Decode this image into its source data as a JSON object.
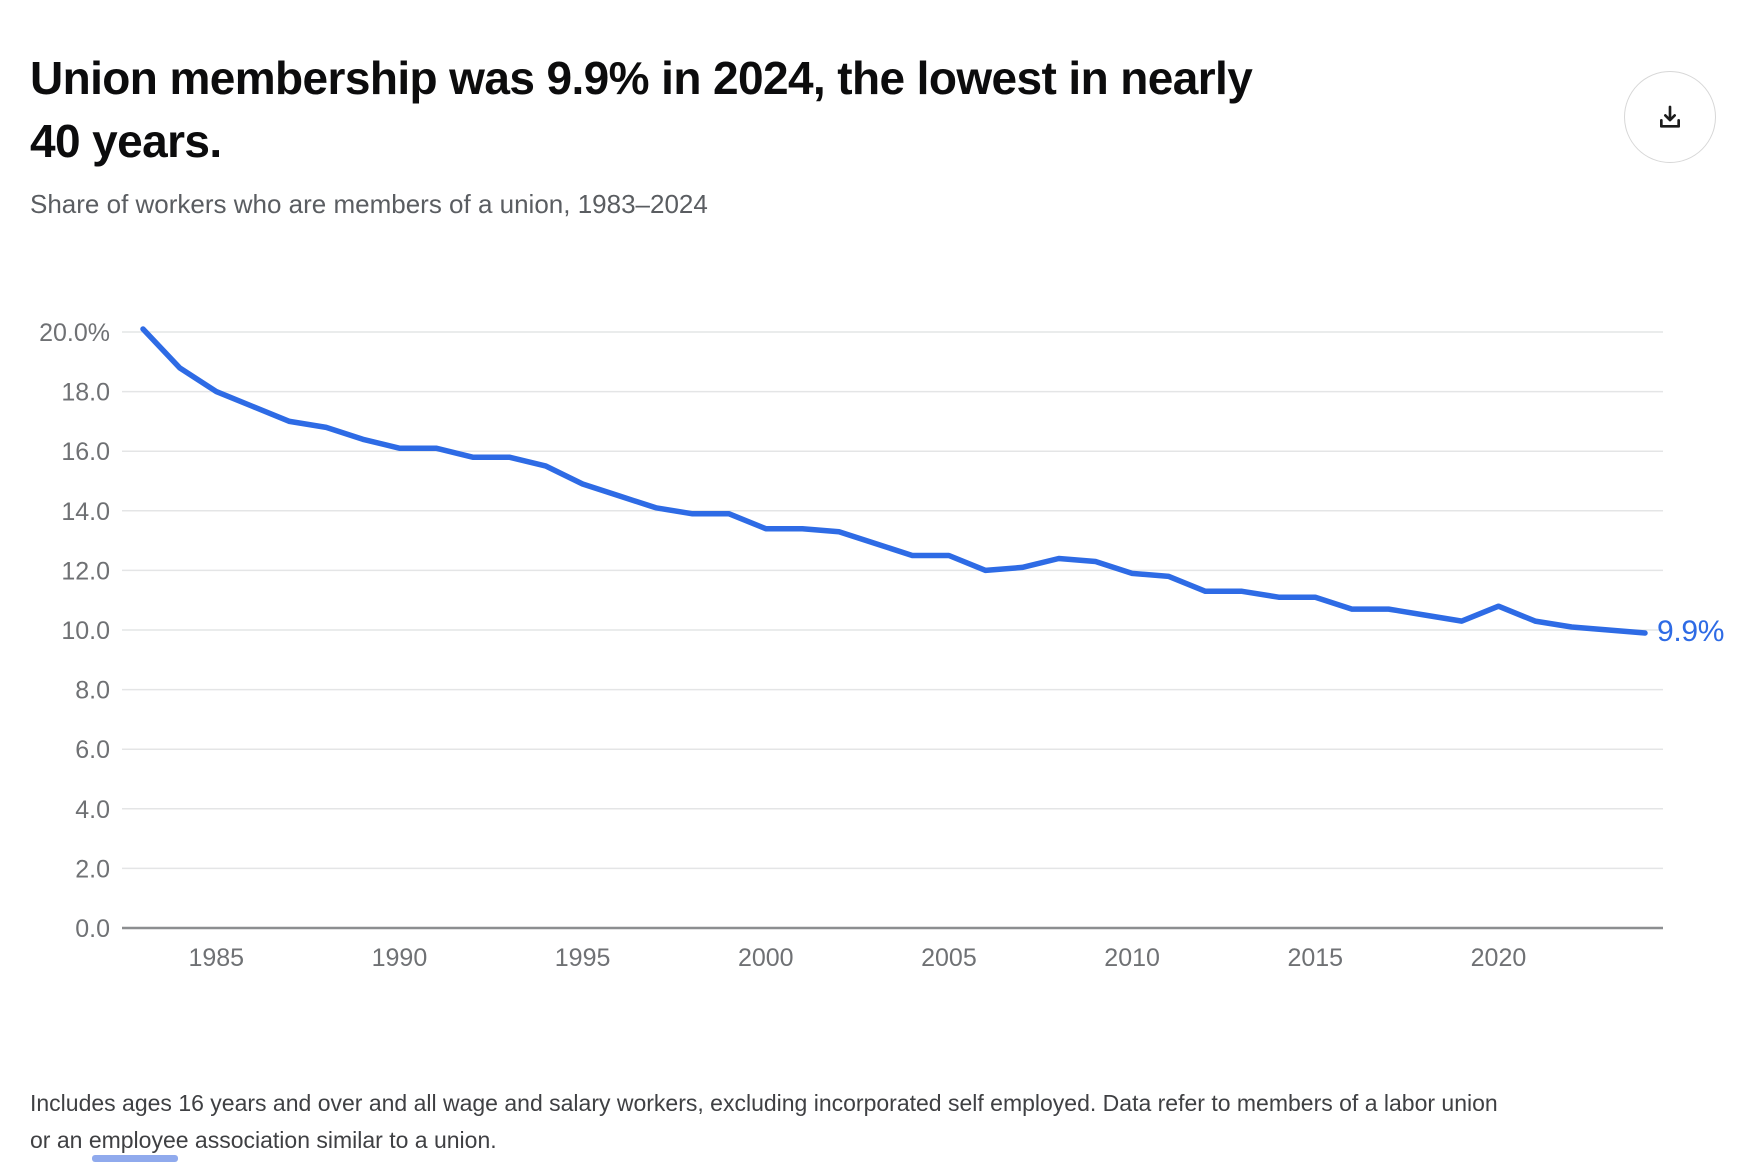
{
  "chart_data": {
    "type": "line",
    "title": "Union membership was 9.9% in 2024, the lowest in nearly\n40 years.",
    "subtitle": "Share of workers who are members of a union, 1983–2024",
    "footnote": "Includes ages 16 years and over and all wage and salary workers, excluding incorporated self employed. Data refer to members of a labor union or an employee association similar to a union.",
    "end_label": "9.9%",
    "x": [
      1983,
      1984,
      1985,
      1986,
      1987,
      1988,
      1989,
      1990,
      1991,
      1992,
      1993,
      1994,
      1995,
      1996,
      1997,
      1998,
      1999,
      2000,
      2001,
      2002,
      2003,
      2004,
      2005,
      2006,
      2007,
      2008,
      2009,
      2010,
      2011,
      2012,
      2013,
      2014,
      2015,
      2016,
      2017,
      2018,
      2019,
      2020,
      2021,
      2022,
      2023,
      2024
    ],
    "series": [
      {
        "name": "Share of workers who are members of a union",
        "values": [
          20.1,
          18.8,
          18.0,
          17.5,
          17.0,
          16.8,
          16.4,
          16.1,
          16.1,
          15.8,
          15.8,
          15.5,
          14.9,
          14.5,
          14.1,
          13.9,
          13.9,
          13.4,
          13.4,
          13.3,
          12.9,
          12.5,
          12.5,
          12.0,
          12.1,
          12.4,
          12.3,
          11.9,
          11.8,
          11.3,
          11.3,
          11.1,
          11.1,
          10.7,
          10.7,
          10.5,
          10.3,
          10.8,
          10.3,
          10.1,
          10.0,
          9.9
        ]
      }
    ],
    "xlabel": "",
    "ylabel": "",
    "xlim": [
      1983,
      2024
    ],
    "ylim": [
      0,
      20
    ],
    "grid": true,
    "legend": "none",
    "yticks": [
      20,
      18,
      16,
      14,
      12,
      10,
      8,
      6,
      4,
      2,
      0
    ],
    "ytick_labels": [
      "20.0%",
      "18.0",
      "16.0",
      "14.0",
      "12.0",
      "10.0",
      "8.0",
      "6.0",
      "4.0",
      "2.0",
      "0.0"
    ],
    "xticks": [
      1985,
      1990,
      1995,
      2000,
      2005,
      2010,
      2015,
      2020
    ],
    "line_color": "#2E6BE5",
    "label_color": "#6F7174",
    "grid_color": "#E4E5E6",
    "axis_color": "#8C8E90",
    "title_color": "#0C0C0D",
    "subtitle_color": "#5A5D61",
    "footnote_color": "#3F4043"
  },
  "icons": {
    "download": "download-icon"
  }
}
